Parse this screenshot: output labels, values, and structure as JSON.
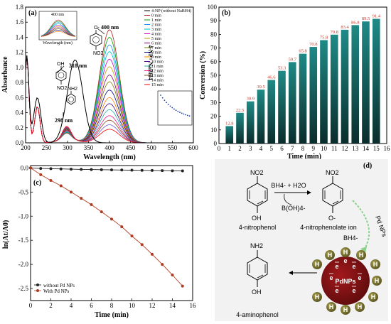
{
  "panel_a": {
    "label": "(a)",
    "xlabel": "Wavelength (nm)",
    "ylabel": "Absorbance",
    "xticks": [
      "200",
      "250",
      "300",
      "350",
      "400",
      "450",
      "500",
      "550",
      "600"
    ],
    "yticks": [
      "0.0",
      "0.2",
      "0.4",
      "0.6",
      "0.8",
      "1.0",
      "1.2",
      "1.4",
      "1.6",
      "1.8"
    ],
    "annotations": {
      "a400": "400 nm",
      "a318": "318 nm",
      "a298": "298 nm"
    },
    "vertical_label": "4-NP+ NaBH4",
    "legend": [
      "4-NP (without NaBH4)",
      "0 min",
      "1 min",
      "2 min",
      "3 min",
      "4 min",
      "5 min",
      "6 min",
      "7 min",
      "8 min",
      "9 min",
      "10 min",
      "11 min",
      "12 min",
      "13 min",
      "14 min",
      "15 min"
    ],
    "inset_top": {
      "title": "400 nm",
      "xlabel": "Wavelength (nm)"
    },
    "chem_labels": {
      "oh": "OH",
      "no2": "NO2",
      "nh2": "NH2",
      "ominus": "O-"
    }
  },
  "panel_b": {
    "label": "(b)",
    "xlabel": "Time (min)",
    "ylabel": "Conversion (%)",
    "xticks": [
      "0",
      "1",
      "2",
      "3",
      "4",
      "5",
      "6",
      "7",
      "8",
      "9",
      "10",
      "11",
      "12",
      "13",
      "14",
      "15",
      "16"
    ],
    "yticks": [
      "0",
      "10",
      "20",
      "30",
      "40",
      "50",
      "60",
      "70",
      "80",
      "90",
      "100"
    ]
  },
  "panel_c": {
    "label": "(c)",
    "xlabel": "Time (min)",
    "ylabel": "ln(At/A0)",
    "xticks": [
      "0",
      "2",
      "4",
      "6",
      "8",
      "10",
      "12",
      "14",
      "16"
    ],
    "yticks": [
      "0.0",
      "-0.5",
      "-1.0",
      "-1.5",
      "-2.0",
      "-2.5"
    ],
    "legend": [
      "without Pd NPs",
      "With Pd NPs"
    ]
  },
  "panel_d": {
    "label": "(d)",
    "reagent_top": "BH4- + H2O",
    "byproduct": "B(OH)4-",
    "bh4": "BH4-",
    "pdnps_arrow": "Pd NPs",
    "center": "PdNPs",
    "h_label": "H",
    "e_label": "e",
    "names": {
      "nitrophenol": "4-nitrophenol",
      "nitrophenolate": "4-nitrophenolate ion",
      "aminophenol": "4-aminophenol"
    },
    "groups": {
      "no2": "NO2",
      "oh": "OH",
      "ominus": "O-",
      "nh2": "NH2"
    }
  },
  "chart_data": [
    {
      "type": "line",
      "title": "",
      "xlabel": "Wavelength (nm)",
      "ylabel": "Absorbance",
      "xlim": [
        200,
        600
      ],
      "ylim": [
        0.0,
        1.8
      ],
      "peaks_nm": [
        400,
        318,
        298
      ],
      "series_peak_at_400nm": {
        "names": [
          "0 min",
          "1 min",
          "2 min",
          "3 min",
          "4 min",
          "5 min",
          "6 min",
          "7 min",
          "8 min",
          "9 min",
          "10 min",
          "11 min",
          "12 min",
          "13 min",
          "14 min",
          "15 min"
        ],
        "values": [
          1.5,
          1.4,
          1.3,
          1.21,
          1.11,
          1.01,
          0.9,
          0.81,
          0.7,
          0.6,
          0.52,
          0.44,
          0.36,
          0.3,
          0.24,
          0.18
        ]
      },
      "series_4np_without_nabh4_peak_318nm": 1.1
    },
    {
      "type": "bar",
      "title": "",
      "xlabel": "Time (min)",
      "ylabel": "Conversion (%)",
      "xlim": [
        0,
        16
      ],
      "ylim": [
        0,
        100
      ],
      "categories": [
        1,
        2,
        3,
        4,
        5,
        6,
        7,
        8,
        9,
        10,
        11,
        12,
        13,
        14,
        15
      ],
      "values": [
        12.8,
        22.5,
        30.9,
        39.5,
        46.6,
        53.3,
        59.7,
        65.8,
        70.8,
        75.8,
        79.8,
        83.4,
        86.8,
        89.5,
        91.4
      ],
      "labels": [
        "12.8",
        "22.5",
        "30.9",
        "39.5",
        "46.6",
        "53.3",
        "59.7",
        "65.8",
        "70.8",
        "75.8",
        "79.8",
        "83.4",
        "86.8",
        "89.5",
        "91.4"
      ]
    },
    {
      "type": "line",
      "title": "",
      "xlabel": "Time (min)",
      "ylabel": "ln(At/A0)",
      "xlim": [
        0,
        16
      ],
      "ylim": [
        -2.75,
        0.05
      ],
      "series": [
        {
          "name": "without Pd NPs",
          "x": [
            0,
            1,
            2,
            3,
            4,
            5,
            6,
            7,
            8,
            9,
            10,
            11,
            12,
            13,
            14,
            15
          ],
          "y": [
            0,
            -0.01,
            -0.015,
            -0.02,
            -0.025,
            -0.03,
            -0.033,
            -0.036,
            -0.04,
            -0.043,
            -0.046,
            -0.049,
            -0.052,
            -0.055,
            -0.058,
            -0.06
          ]
        },
        {
          "name": "With Pd NPs",
          "x": [
            0,
            1,
            2,
            3,
            4,
            5,
            6,
            7,
            8,
            9,
            10,
            11,
            12,
            13,
            14,
            15
          ],
          "y": [
            0,
            -0.14,
            -0.26,
            -0.37,
            -0.5,
            -0.63,
            -0.76,
            -0.91,
            -1.06,
            -1.22,
            -1.41,
            -1.59,
            -1.79,
            -2.0,
            -2.22,
            -2.45
          ]
        }
      ]
    }
  ]
}
